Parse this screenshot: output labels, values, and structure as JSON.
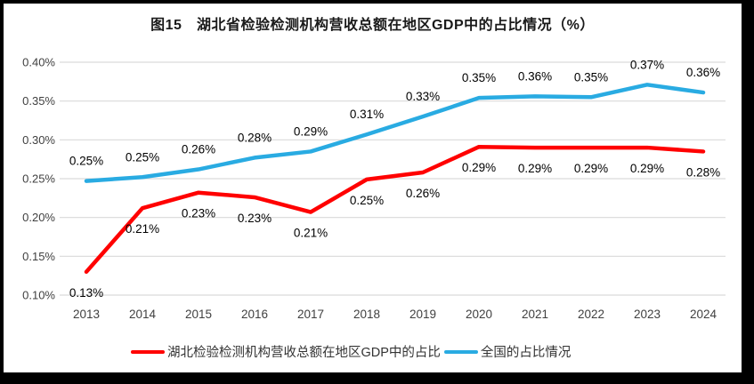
{
  "chart_data": {
    "type": "line",
    "title": "图15　湖北省检验检测机构营收总额在地区GDP中的占比情况（%）",
    "categories": [
      "2013",
      "2014",
      "2015",
      "2016",
      "2017",
      "2018",
      "2019",
      "2020",
      "2021",
      "2022",
      "2023",
      "2024"
    ],
    "series": [
      {
        "name": "湖北检验检测机构营收总额在地区GDP中的占比",
        "color": "#FF0000",
        "values": [
          0.13,
          0.212,
          0.232,
          0.226,
          0.207,
          0.249,
          0.258,
          0.291,
          0.29,
          0.29,
          0.29,
          0.285
        ],
        "labels": [
          "0.13%",
          "0.21%",
          "0.23%",
          "0.23%",
          "0.21%",
          "0.25%",
          "0.26%",
          "0.29%",
          "0.29%",
          "0.29%",
          "0.29%",
          "0.28%"
        ],
        "label_position": "below"
      },
      {
        "name": "全国的占比情况",
        "color": "#29ABE2",
        "values": [
          0.247,
          0.252,
          0.262,
          0.277,
          0.285,
          0.307,
          0.33,
          0.354,
          0.356,
          0.355,
          0.371,
          0.361
        ],
        "labels": [
          "0.25%",
          "0.25%",
          "0.26%",
          "0.28%",
          "0.29%",
          "0.31%",
          "0.33%",
          "0.35%",
          "0.36%",
          "0.35%",
          "0.37%",
          "0.36%"
        ],
        "label_position": "above"
      }
    ],
    "y_axis": {
      "min": 0.1,
      "max": 0.4,
      "step": 0.05,
      "tick_labels": [
        "0.40%",
        "0.35%",
        "0.30%",
        "0.25%",
        "0.20%",
        "0.15%",
        "0.10%"
      ]
    },
    "x_axis_label": "",
    "ylabel": "",
    "grid": true,
    "grid_color": "#D9D9D9",
    "tick_label_color": "#404040",
    "data_label_color": "#000000",
    "legend_position": "bottom",
    "frame_color": "#000000"
  }
}
